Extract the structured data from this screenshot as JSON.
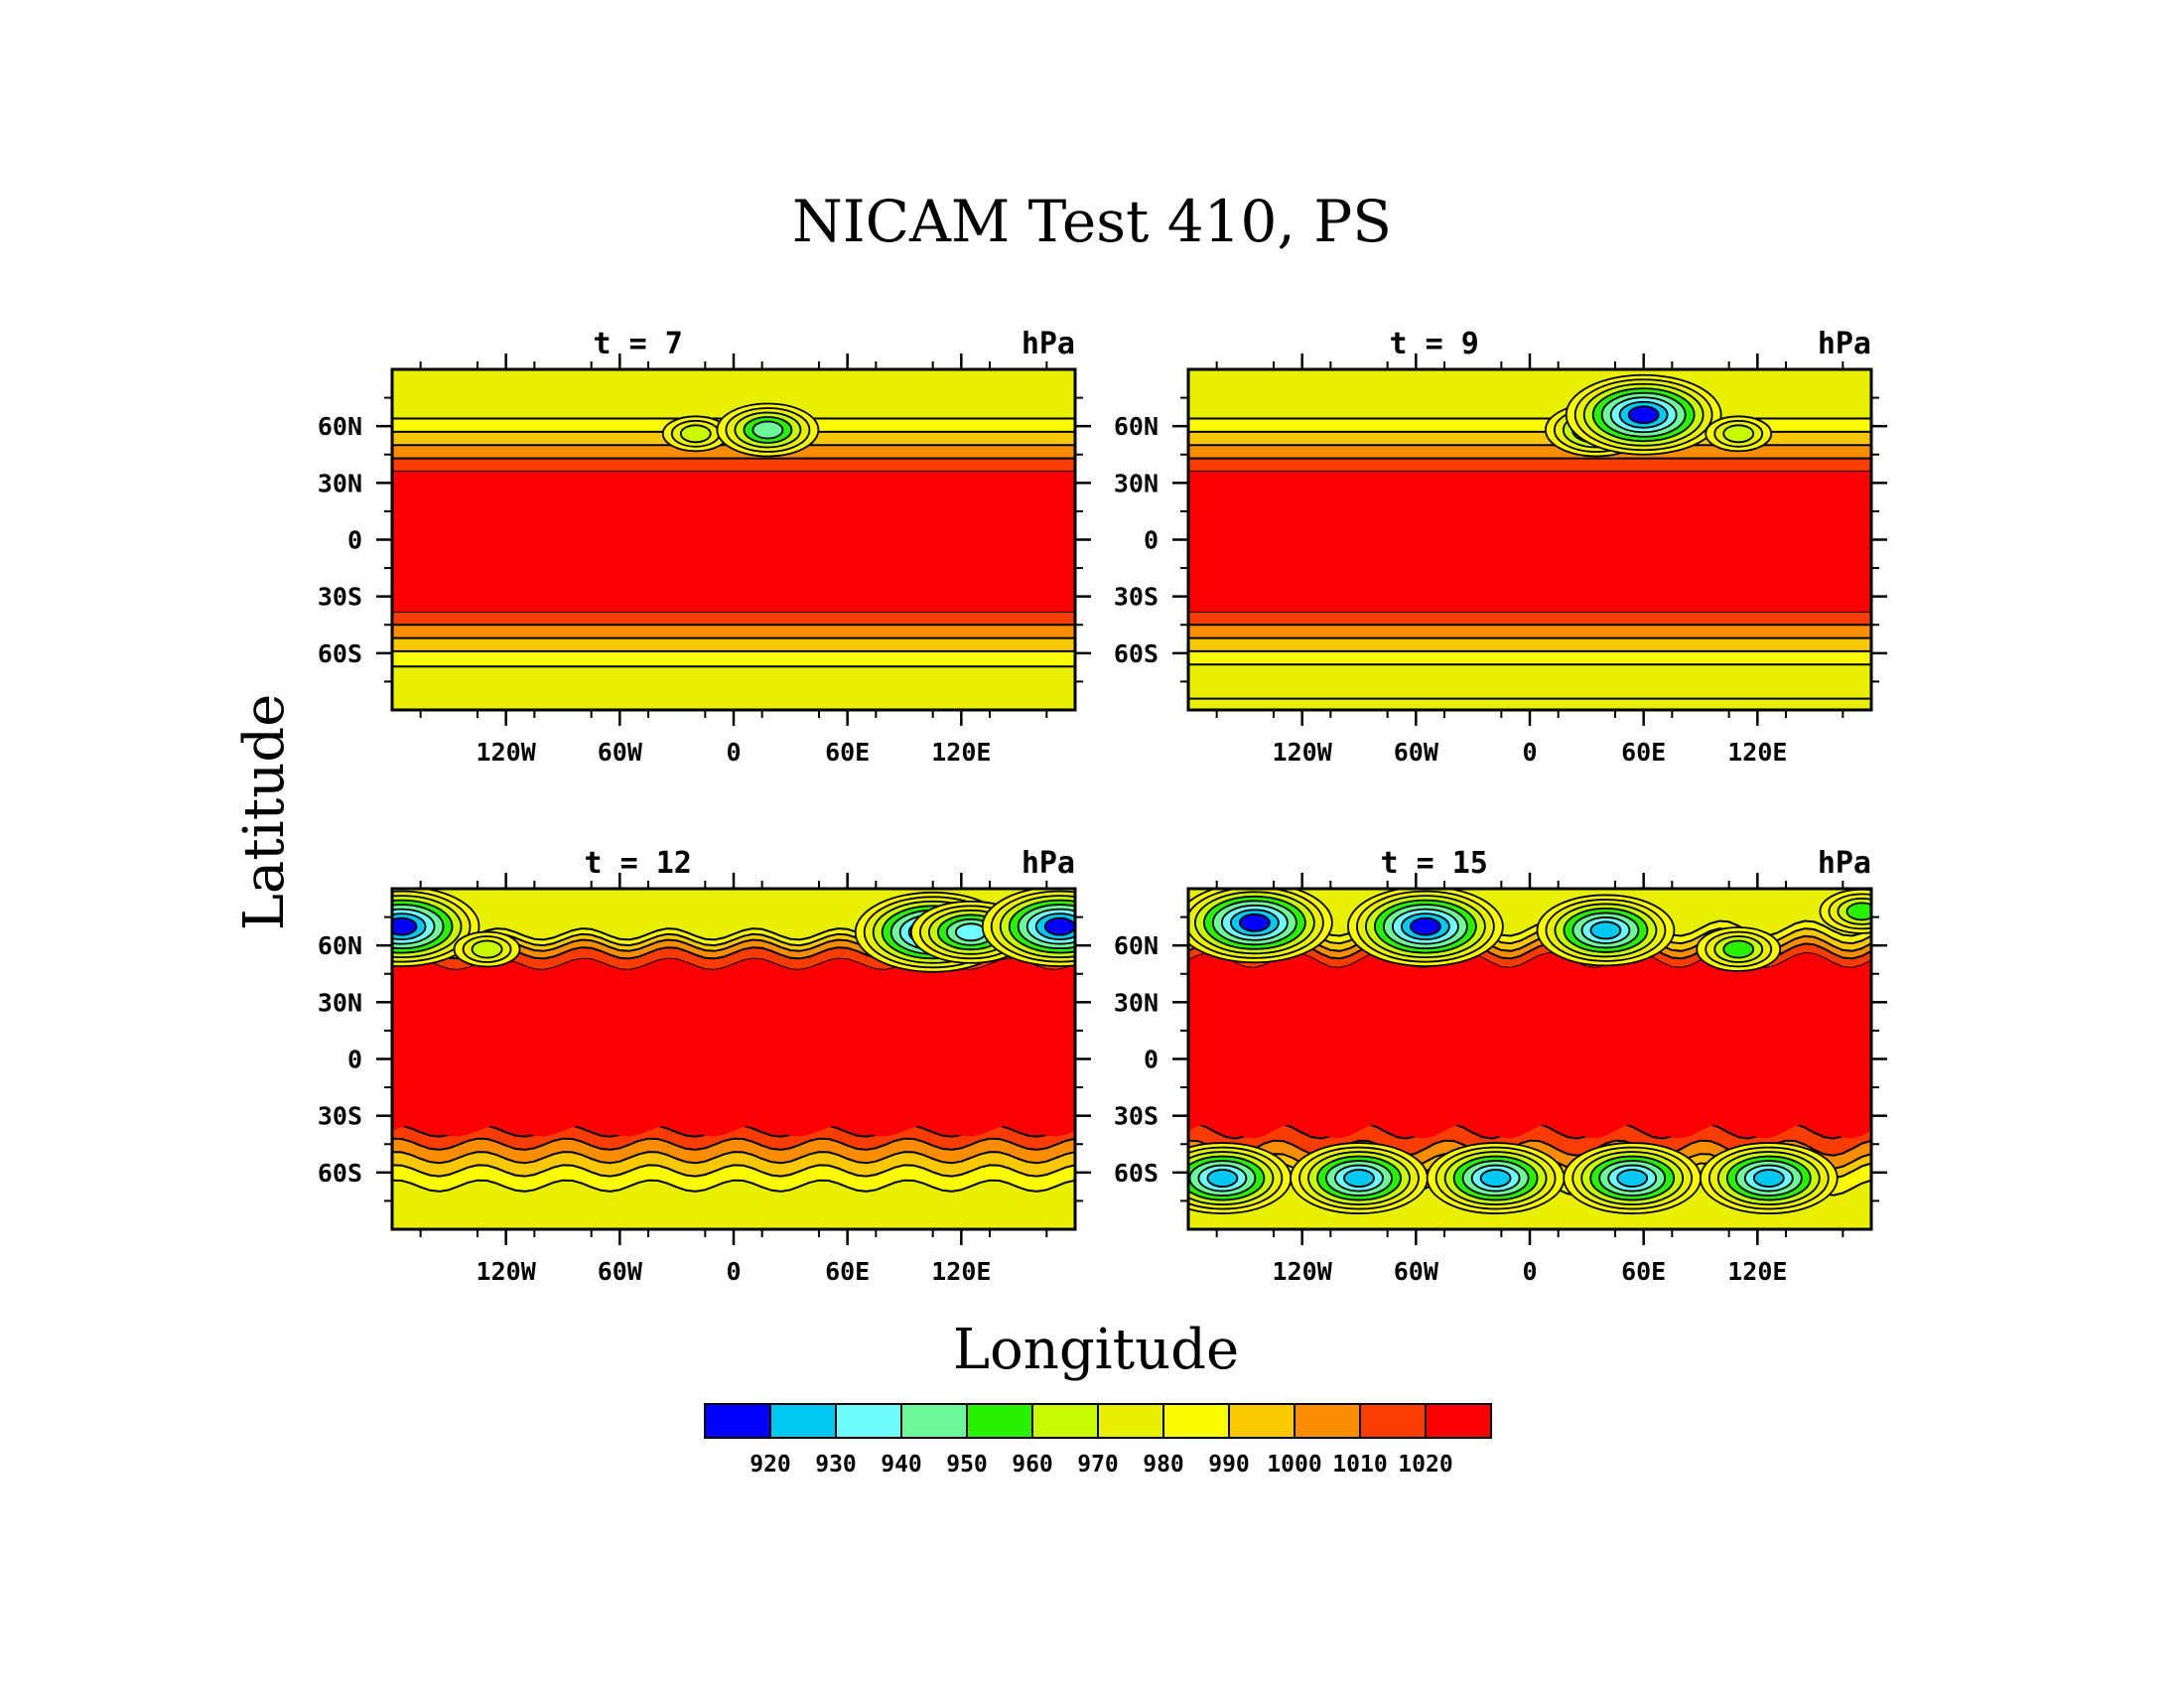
{
  "chart_data": {
    "type": "heatmap",
    "title": "NICAM Test 410, PS",
    "xlabel": "Longitude",
    "ylabel": "Latitude",
    "units": "hPa",
    "x_range": [
      -180,
      180
    ],
    "y_range": [
      -90,
      90
    ],
    "x_ticks": [
      {
        "value": -120,
        "label": "120W"
      },
      {
        "value": -60,
        "label": "60W"
      },
      {
        "value": 0,
        "label": "0"
      },
      {
        "value": 60,
        "label": "60E"
      },
      {
        "value": 120,
        "label": "120E"
      }
    ],
    "y_ticks": [
      {
        "value": 60,
        "label": "60N"
      },
      {
        "value": 30,
        "label": "30N"
      },
      {
        "value": 0,
        "label": "0"
      },
      {
        "value": -30,
        "label": "30S"
      },
      {
        "value": -60,
        "label": "60S"
      }
    ],
    "colorbar": {
      "levels": [
        920,
        930,
        940,
        950,
        960,
        970,
        980,
        990,
        1000,
        1010,
        1020
      ],
      "colors": [
        "#0000ff",
        "#00c8f0",
        "#6efcfc",
        "#6efa9a",
        "#28f000",
        "#c8fa00",
        "#e8f000",
        "#fafa00",
        "#fac800",
        "#fa8c00",
        "#fa3c00",
        "#fa0000"
      ]
    },
    "panels": [
      {
        "label": "t = 7",
        "time": 7,
        "north_bands": [
          {
            "lat": 36,
            "value": 1020
          },
          {
            "lat": 43,
            "value": 1010
          },
          {
            "lat": 50,
            "value": 1000
          },
          {
            "lat": 57,
            "value": 990
          },
          {
            "lat": 64,
            "value": 980
          }
        ],
        "south_bands": [
          {
            "lat": -38,
            "value": 1020
          },
          {
            "lat": -45,
            "value": 1010
          },
          {
            "lat": -52,
            "value": 1000
          },
          {
            "lat": -59,
            "value": 990
          },
          {
            "lat": -67,
            "value": 980
          }
        ],
        "lows": [
          {
            "lon": -20,
            "lat": 56,
            "value": 970
          },
          {
            "lon": 18,
            "lat": 58,
            "value": 950
          }
        ]
      },
      {
        "label": "t = 9",
        "time": 9,
        "north_bands": [
          {
            "lat": 36,
            "value": 1020
          },
          {
            "lat": 43,
            "value": 1010
          },
          {
            "lat": 50,
            "value": 1000
          },
          {
            "lat": 57,
            "value": 990
          },
          {
            "lat": 64,
            "value": 980
          }
        ],
        "south_bands": [
          {
            "lat": -38,
            "value": 1020
          },
          {
            "lat": -45,
            "value": 1010
          },
          {
            "lat": -52,
            "value": 1000
          },
          {
            "lat": -59,
            "value": 990
          },
          {
            "lat": -66,
            "value": 980
          },
          {
            "lat": -84,
            "value": 970
          }
        ],
        "lows": [
          {
            "lon": 35,
            "lat": 58,
            "value": 950
          },
          {
            "lon": 60,
            "lat": 66,
            "value": 920
          },
          {
            "lon": 110,
            "lat": 56,
            "value": 970
          }
        ]
      },
      {
        "label": "t = 12",
        "time": 12,
        "north_bands": [
          {
            "lat": 50,
            "value": 1020
          },
          {
            "lat": 56,
            "value": 1010
          },
          {
            "lat": 60,
            "value": 1000
          },
          {
            "lat": 63,
            "value": 990
          },
          {
            "lat": 66,
            "value": 980
          }
        ],
        "south_bands": [
          {
            "lat": -38,
            "value": 1020
          },
          {
            "lat": -45,
            "value": 1010
          },
          {
            "lat": -52,
            "value": 1000
          },
          {
            "lat": -59,
            "value": 990
          },
          {
            "lat": -67,
            "value": 980
          }
        ],
        "lows": [
          {
            "lon": -175,
            "lat": 70,
            "value": 920
          },
          {
            "lon": -130,
            "lat": 58,
            "value": 970
          },
          {
            "lon": 105,
            "lat": 67,
            "value": 920
          },
          {
            "lon": 125,
            "lat": 67,
            "value": 940
          },
          {
            "lon": 172,
            "lat": 70,
            "value": 920
          }
        ]
      },
      {
        "label": "t = 15",
        "time": 15,
        "north_bands": [
          {
            "lat": 52,
            "value": 1020
          },
          {
            "lat": 57,
            "value": 1010
          },
          {
            "lat": 61,
            "value": 1000
          },
          {
            "lat": 65,
            "value": 990
          },
          {
            "lat": 69,
            "value": 980
          }
        ],
        "south_bands": [
          {
            "lat": -38,
            "value": 1020
          },
          {
            "lat": -47,
            "value": 1010
          },
          {
            "lat": -54,
            "value": 1000
          },
          {
            "lat": -59,
            "value": 990
          },
          {
            "lat": -68,
            "value": 980
          }
        ],
        "lows": [
          {
            "lon": -145,
            "lat": 72,
            "value": 920
          },
          {
            "lon": -55,
            "lat": 70,
            "value": 920
          },
          {
            "lon": 40,
            "lat": 68,
            "value": 930
          },
          {
            "lon": 110,
            "lat": 58,
            "value": 960
          },
          {
            "lon": 175,
            "lat": 78,
            "value": 960
          },
          {
            "lon": -162,
            "lat": -63,
            "value": 930
          },
          {
            "lon": -90,
            "lat": -63,
            "value": 930
          },
          {
            "lon": -18,
            "lat": -63,
            "value": 930
          },
          {
            "lon": 54,
            "lat": -63,
            "value": 930
          },
          {
            "lon": 126,
            "lat": -63,
            "value": 930
          }
        ]
      }
    ]
  }
}
